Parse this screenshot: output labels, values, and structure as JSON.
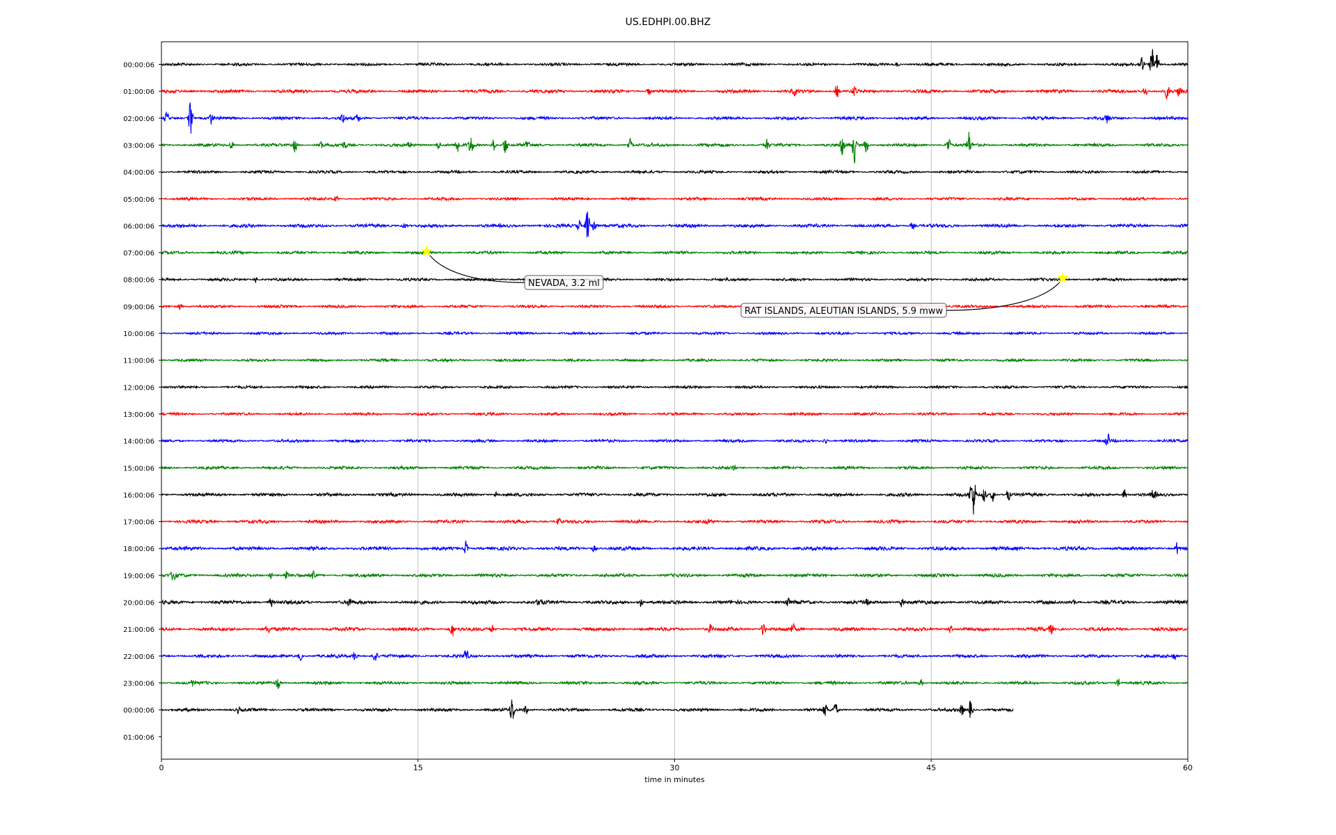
{
  "chart_data": {
    "type": "line",
    "title": "US.EDHPI.00.BHZ",
    "xlabel": "time in minutes",
    "ylabel": "",
    "xlim": [
      0,
      60
    ],
    "x_ticks": [
      "0",
      "15",
      "30",
      "45",
      "60"
    ],
    "grid": "vertical lines at 15, 30, 45",
    "legend": "none",
    "row_labels": [
      "00:00:06",
      "01:00:06",
      "02:00:06",
      "03:00:06",
      "04:00:06",
      "05:00:06",
      "06:00:06",
      "07:00:06",
      "08:00:06",
      "09:00:06",
      "10:00:06",
      "11:00:06",
      "12:00:06",
      "13:00:06",
      "14:00:06",
      "15:00:06",
      "16:00:06",
      "17:00:06",
      "18:00:06",
      "19:00:06",
      "20:00:06",
      "21:00:06",
      "22:00:06",
      "23:00:06",
      "00:00:06",
      "01:00:06"
    ],
    "trace_colors": [
      "#000000",
      "#ff0000",
      "#0000ff",
      "#008000"
    ],
    "last_trace_end_minutes": 49.8,
    "traces": [
      {
        "row": 0,
        "noise": 2.0,
        "spikes": [
          [
            43,
            4
          ],
          [
            57.9,
            30
          ],
          [
            58.2,
            22
          ],
          [
            57.3,
            18
          ]
        ]
      },
      {
        "row": 1,
        "noise": 2.4,
        "spikes": [
          [
            28.5,
            7
          ],
          [
            37,
            6
          ],
          [
            39.5,
            14
          ],
          [
            40.5,
            10
          ],
          [
            57.5,
            10
          ],
          [
            58.8,
            12
          ],
          [
            59.5,
            9
          ]
        ]
      },
      {
        "row": 2,
        "noise": 2.2,
        "spikes": [
          [
            0.3,
            9
          ],
          [
            1.7,
            32
          ],
          [
            2.9,
            9
          ],
          [
            10.6,
            10
          ],
          [
            11.5,
            8
          ],
          [
            55.3,
            9
          ]
        ]
      },
      {
        "row": 3,
        "noise": 2.2,
        "spikes": [
          [
            4.1,
            8
          ],
          [
            7.8,
            12
          ],
          [
            9.3,
            9
          ],
          [
            10.7,
            7
          ],
          [
            14.5,
            6
          ],
          [
            16.2,
            8
          ],
          [
            17.3,
            14
          ],
          [
            18.1,
            20
          ],
          [
            19.4,
            14
          ],
          [
            20.1,
            18
          ],
          [
            21.4,
            9
          ],
          [
            27.4,
            9
          ],
          [
            35.4,
            10
          ],
          [
            39.8,
            20
          ],
          [
            40.5,
            28
          ],
          [
            41.2,
            14
          ],
          [
            46.0,
            14
          ],
          [
            47.2,
            22
          ]
        ]
      },
      {
        "row": 4,
        "noise": 2.0,
        "spikes": []
      },
      {
        "row": 5,
        "noise": 2.0,
        "spikes": [
          [
            10.2,
            5
          ]
        ]
      },
      {
        "row": 6,
        "noise": 2.4,
        "spikes": [
          [
            14.2,
            6
          ],
          [
            24.4,
            10
          ],
          [
            24.9,
            34
          ],
          [
            25.3,
            14
          ],
          [
            43.9,
            6
          ]
        ]
      },
      {
        "row": 7,
        "noise": 2.1,
        "spikes": []
      },
      {
        "row": 8,
        "noise": 2.0,
        "spikes": [
          [
            5.5,
            4
          ]
        ]
      },
      {
        "row": 9,
        "noise": 2.0,
        "spikes": [
          [
            1.1,
            7
          ]
        ]
      },
      {
        "row": 10,
        "noise": 1.9,
        "spikes": []
      },
      {
        "row": 11,
        "noise": 1.9,
        "spikes": []
      },
      {
        "row": 12,
        "noise": 1.9,
        "spikes": []
      },
      {
        "row": 13,
        "noise": 1.9,
        "spikes": []
      },
      {
        "row": 14,
        "noise": 2.0,
        "spikes": [
          [
            38.8,
            5
          ],
          [
            55.3,
            12
          ]
        ]
      },
      {
        "row": 15,
        "noise": 2.1,
        "spikes": [
          [
            33.5,
            5
          ]
        ]
      },
      {
        "row": 16,
        "noise": 2.3,
        "spikes": [
          [
            19.6,
            6
          ],
          [
            47.3,
            14
          ],
          [
            47.5,
            34
          ],
          [
            48.1,
            14
          ],
          [
            48.6,
            12
          ],
          [
            49.5,
            10
          ],
          [
            56.3,
            10
          ],
          [
            58.0,
            12
          ]
        ]
      },
      {
        "row": 17,
        "noise": 2.3,
        "spikes": [
          [
            23.2,
            6
          ],
          [
            31.9,
            5
          ]
        ]
      },
      {
        "row": 18,
        "noise": 2.6,
        "spikes": [
          [
            17.8,
            12
          ],
          [
            25.3,
            6
          ],
          [
            59.4,
            12
          ]
        ]
      },
      {
        "row": 19,
        "noise": 2.4,
        "spikes": [
          [
            0.7,
            12
          ],
          [
            6.4,
            8
          ],
          [
            7.3,
            9
          ],
          [
            8.9,
            10
          ]
        ]
      },
      {
        "row": 20,
        "noise": 2.6,
        "spikes": [
          [
            6.4,
            7
          ],
          [
            11.0,
            8
          ],
          [
            22.1,
            7
          ],
          [
            28.0,
            9
          ],
          [
            36.6,
            9
          ],
          [
            41.2,
            11
          ],
          [
            43.3,
            9
          ],
          [
            53.3,
            6
          ]
        ]
      },
      {
        "row": 21,
        "noise": 2.6,
        "spikes": [
          [
            6.2,
            7
          ],
          [
            17.0,
            14
          ],
          [
            19.3,
            7
          ],
          [
            32.1,
            7
          ],
          [
            35.2,
            12
          ],
          [
            36.9,
            8
          ],
          [
            46.1,
            7
          ],
          [
            52.0,
            10
          ]
        ]
      },
      {
        "row": 22,
        "noise": 2.3,
        "spikes": [
          [
            8.1,
            7
          ],
          [
            11.3,
            9
          ],
          [
            12.5,
            13
          ],
          [
            17.8,
            11
          ],
          [
            59.2,
            8
          ]
        ]
      },
      {
        "row": 23,
        "noise": 2.2,
        "spikes": [
          [
            1.8,
            6
          ],
          [
            6.8,
            9
          ],
          [
            44.4,
            7
          ],
          [
            55.9,
            7
          ]
        ]
      },
      {
        "row": 24,
        "noise": 2.2,
        "spikes": [
          [
            4.5,
            5
          ],
          [
            20.5,
            24
          ],
          [
            21.3,
            9
          ],
          [
            38.8,
            12
          ],
          [
            39.4,
            12
          ],
          [
            46.8,
            12
          ],
          [
            47.3,
            20
          ]
        ]
      }
    ],
    "annotations": [
      {
        "label": "NEVADA, 3.2 ml",
        "row": 7,
        "minute": 15.5
      },
      {
        "label": "RAT ISLANDS, ALEUTIAN ISLANDS, 5.9 mww",
        "row": 8,
        "minute": 52.7
      }
    ]
  }
}
